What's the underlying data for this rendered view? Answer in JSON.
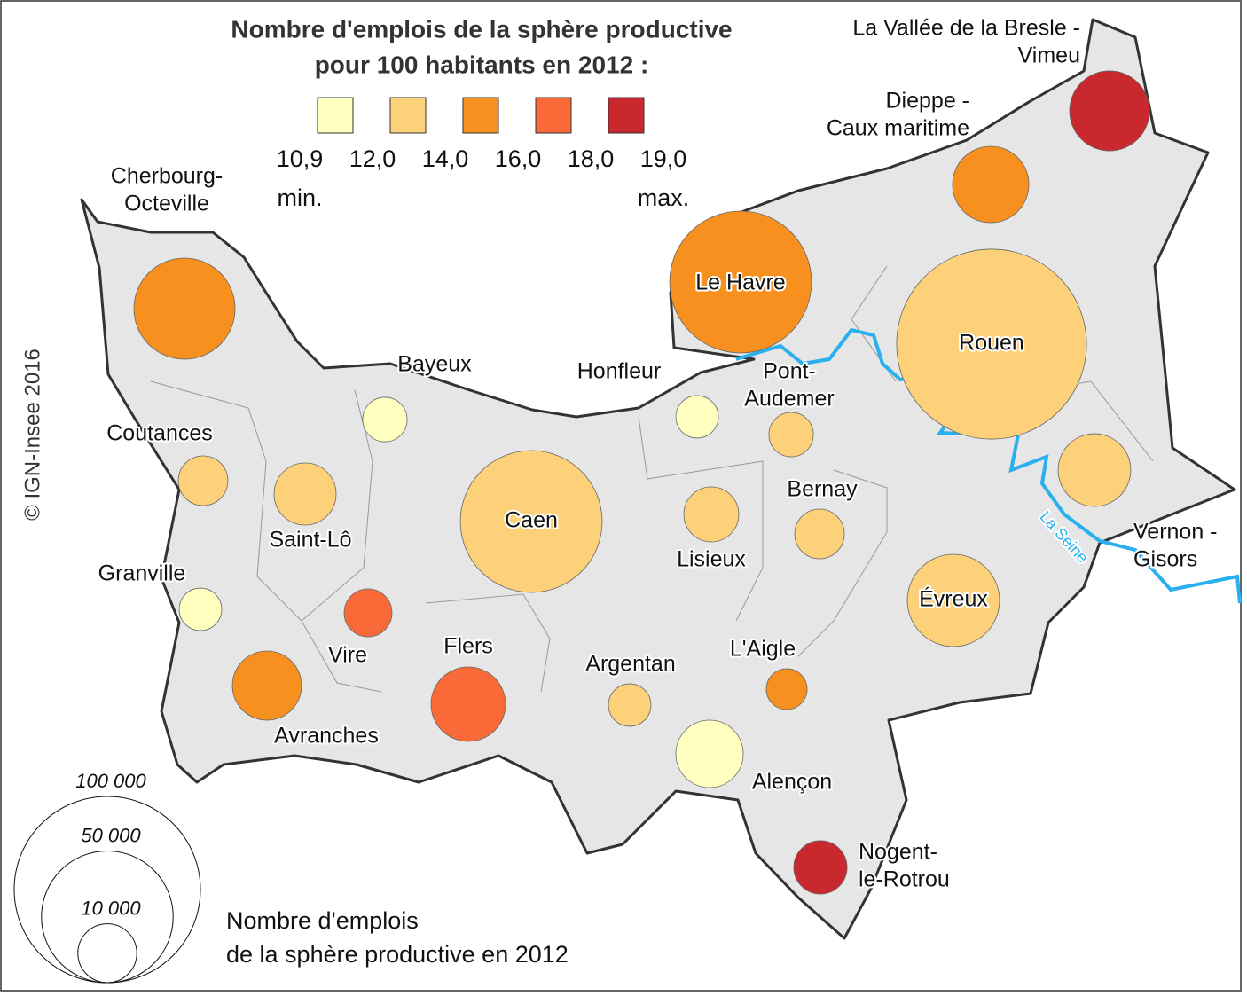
{
  "title_lines": [
    "Nombre d'emplois de la sphère productive",
    "pour 100 habitants en 2012 :"
  ],
  "color_legend": {
    "colors": [
      "#ffffc0",
      "#fdd07a",
      "#f7901e",
      "#f96a38",
      "#c8282e"
    ],
    "breaks": [
      {
        "value": 10.9,
        "label": "10,9"
      },
      {
        "value": 12.0,
        "label": "12,0"
      },
      {
        "value": 14.0,
        "label": "14,0"
      },
      {
        "value": 16.0,
        "label": "16,0"
      },
      {
        "value": 18.0,
        "label": "18,0"
      },
      {
        "value": 19.0,
        "label": "19,0"
      }
    ],
    "min_label": "min.",
    "max_label": "max."
  },
  "size_legend": {
    "values": [
      {
        "value": 100000,
        "label": "100 000"
      },
      {
        "value": 50000,
        "label": "50 000"
      },
      {
        "value": 10000,
        "label": "10 000"
      }
    ],
    "caption_lines": [
      "Nombre d'emplois",
      "de la sphère productive en 2012"
    ]
  },
  "copyright": "© IGN-Insee 2016",
  "river_label": "La Seine",
  "zones": [
    {
      "name": [
        "La Vallée de la Bresle -",
        "Vimeu"
      ],
      "jobs": 18400,
      "color": "#c8282e"
    },
    {
      "name": [
        "Dieppe -",
        "Caux maritime"
      ],
      "jobs": 16800,
      "color": "#f7901e"
    },
    {
      "name": [
        "Cherbourg-",
        "Octeville"
      ],
      "jobs": 29500,
      "color": "#f7901e"
    },
    {
      "name": [
        "Le Havre"
      ],
      "jobs": 58000,
      "color": "#f7901e"
    },
    {
      "name": [
        "Rouen"
      ],
      "jobs": 104000,
      "color": "#fdd07a"
    },
    {
      "name": [
        "Bayeux"
      ],
      "jobs": 5700,
      "color": "#ffffc0"
    },
    {
      "name": [
        "Honfleur"
      ],
      "jobs": 5200,
      "color": "#ffffc0"
    },
    {
      "name": [
        "Pont-",
        "Audemer"
      ],
      "jobs": 5700,
      "color": "#fdd07a"
    },
    {
      "name": [
        "Coutances"
      ],
      "jobs": 7100,
      "color": "#fdd07a"
    },
    {
      "name": [
        "Saint-Lô"
      ],
      "jobs": 11100,
      "color": "#fdd07a"
    },
    {
      "name": [
        "Caen"
      ],
      "jobs": 58000,
      "color": "#fdd07a"
    },
    {
      "name": [
        "Lisieux"
      ],
      "jobs": 8700,
      "color": "#fdd07a"
    },
    {
      "name": [
        "Bernay"
      ],
      "jobs": 7100,
      "color": "#fdd07a"
    },
    {
      "name": [
        "Vernon -",
        "Gisors"
      ],
      "jobs": 15200,
      "color": "#fdd07a"
    },
    {
      "name": [
        "Granville"
      ],
      "jobs": 5200,
      "color": "#ffffc0"
    },
    {
      "name": [
        "Vire"
      ],
      "jobs": 6600,
      "color": "#f96a38"
    },
    {
      "name": [
        "Évreux"
      ],
      "jobs": 24500,
      "color": "#fdd07a"
    },
    {
      "name": [
        "Avranches"
      ],
      "jobs": 13800,
      "color": "#f7901e"
    },
    {
      "name": [
        "Flers"
      ],
      "jobs": 16000,
      "color": "#f96a38"
    },
    {
      "name": [
        "Argentan"
      ],
      "jobs": 5200,
      "color": "#fdd07a"
    },
    {
      "name": [
        "L'Aigle"
      ],
      "jobs": 4800,
      "color": "#f7901e"
    },
    {
      "name": [
        "Alençon"
      ],
      "jobs": 13100,
      "color": "#ffffc0"
    },
    {
      "name": [
        "Nogent-",
        "le-Rotrou"
      ],
      "jobs": 8200,
      "color": "#c8282e"
    }
  ]
}
